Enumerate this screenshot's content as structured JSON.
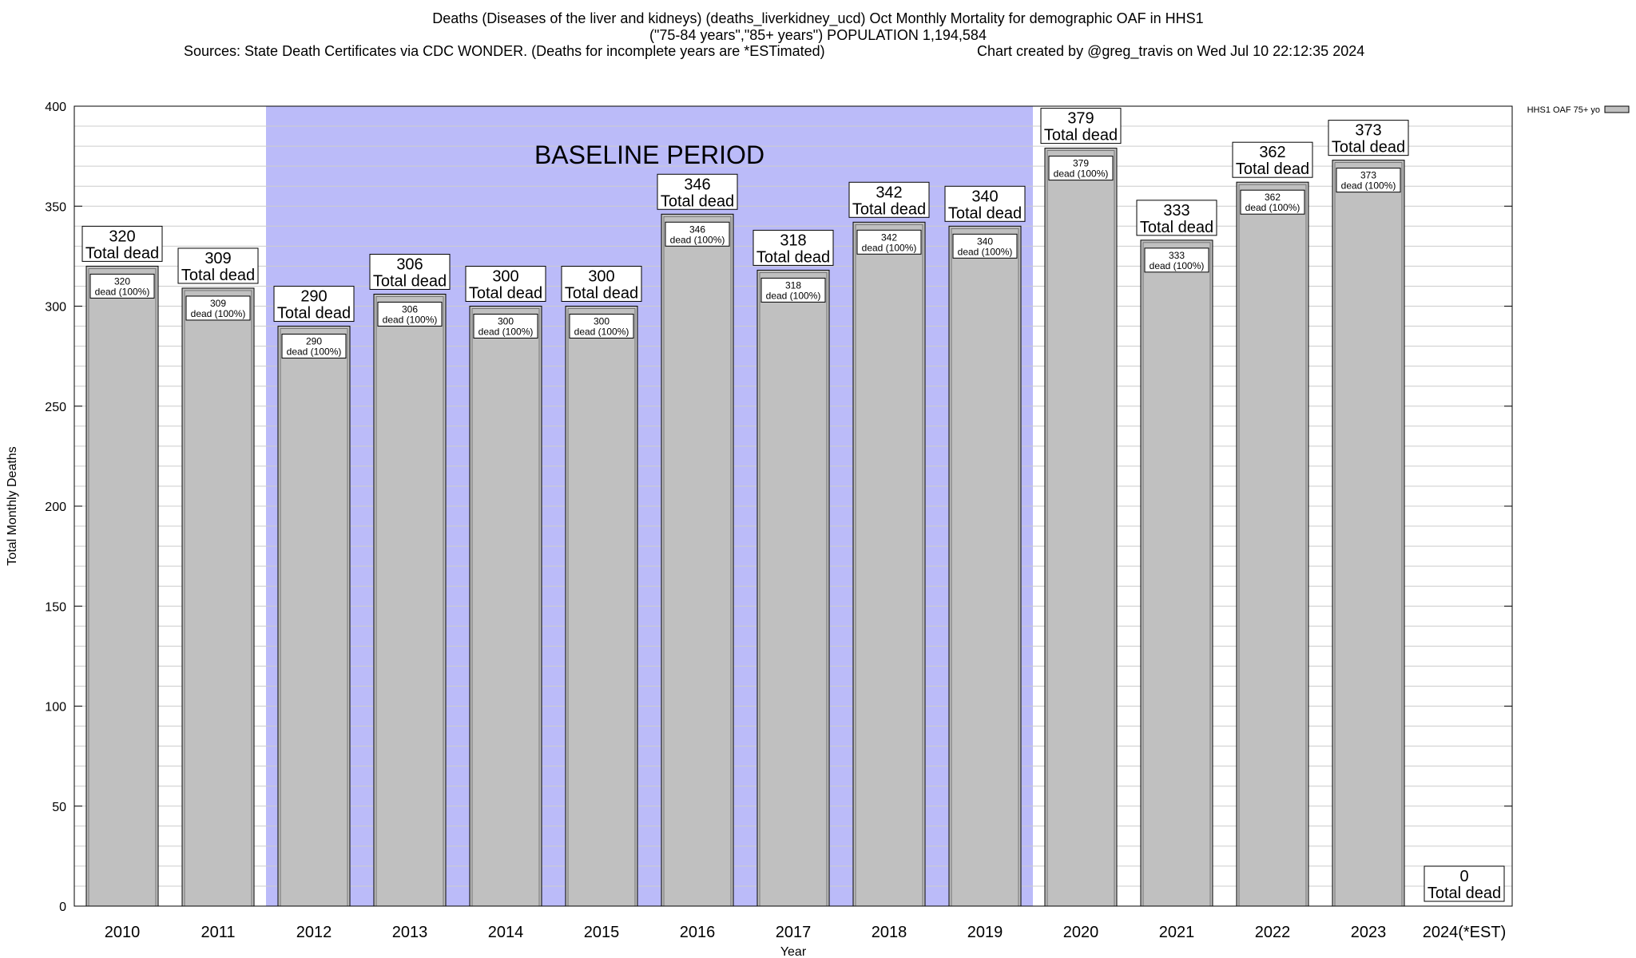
{
  "header": {
    "title_line1": "Deaths (Diseases of the liver and kidneys) (deaths_liverkidney_ucd) Oct Monthly Mortality for demographic OAF in HHS1",
    "title_line2": "(\"75-84 years\",\"85+ years\") POPULATION 1,194,584",
    "sources": "Sources: State Death Certificates via CDC WONDER. (Deaths for incomplete years are *ESTimated)",
    "credit": "Chart created by @greg_travis on Wed Jul 10 22:12:35 2024"
  },
  "chart_data": {
    "type": "bar",
    "categories": [
      "2010",
      "2011",
      "2012",
      "2013",
      "2014",
      "2015",
      "2016",
      "2017",
      "2018",
      "2019",
      "2020",
      "2021",
      "2022",
      "2023",
      "2024(*EST)"
    ],
    "series": [
      {
        "name": "HHS1 OAF 75+ yo",
        "values": [
          320,
          309,
          290,
          306,
          300,
          300,
          346,
          318,
          342,
          340,
          379,
          333,
          362,
          373,
          0
        ]
      }
    ],
    "total_label": "Total dead",
    "inner_labels": [
      "dead (100%)",
      "dead (100%)",
      "dead (100%)",
      "dead (100%)",
      "dead (100%)",
      "dead (100%)",
      "dead (100%)",
      "dead (100%)",
      "dead (100%)",
      "dead (100%)",
      "dead (100%)",
      "dead (100%)",
      "dead (100%)",
      "dead (100%)",
      null
    ],
    "xlabel": "Year",
    "ylabel": "Total Monthly Deaths",
    "ylim": [
      0,
      400
    ],
    "yticks": [
      0,
      50,
      100,
      150,
      200,
      250,
      300,
      350,
      400
    ],
    "minor_grid_step": 10,
    "grid": true,
    "legend_position": "top-right",
    "baseline": {
      "label": "BASELINE PERIOD",
      "start": "2012",
      "end": "2019"
    },
    "colors": {
      "bar": "#c0c0c0",
      "baseline": "#bbbbf9",
      "grid": "#cccccc"
    }
  }
}
